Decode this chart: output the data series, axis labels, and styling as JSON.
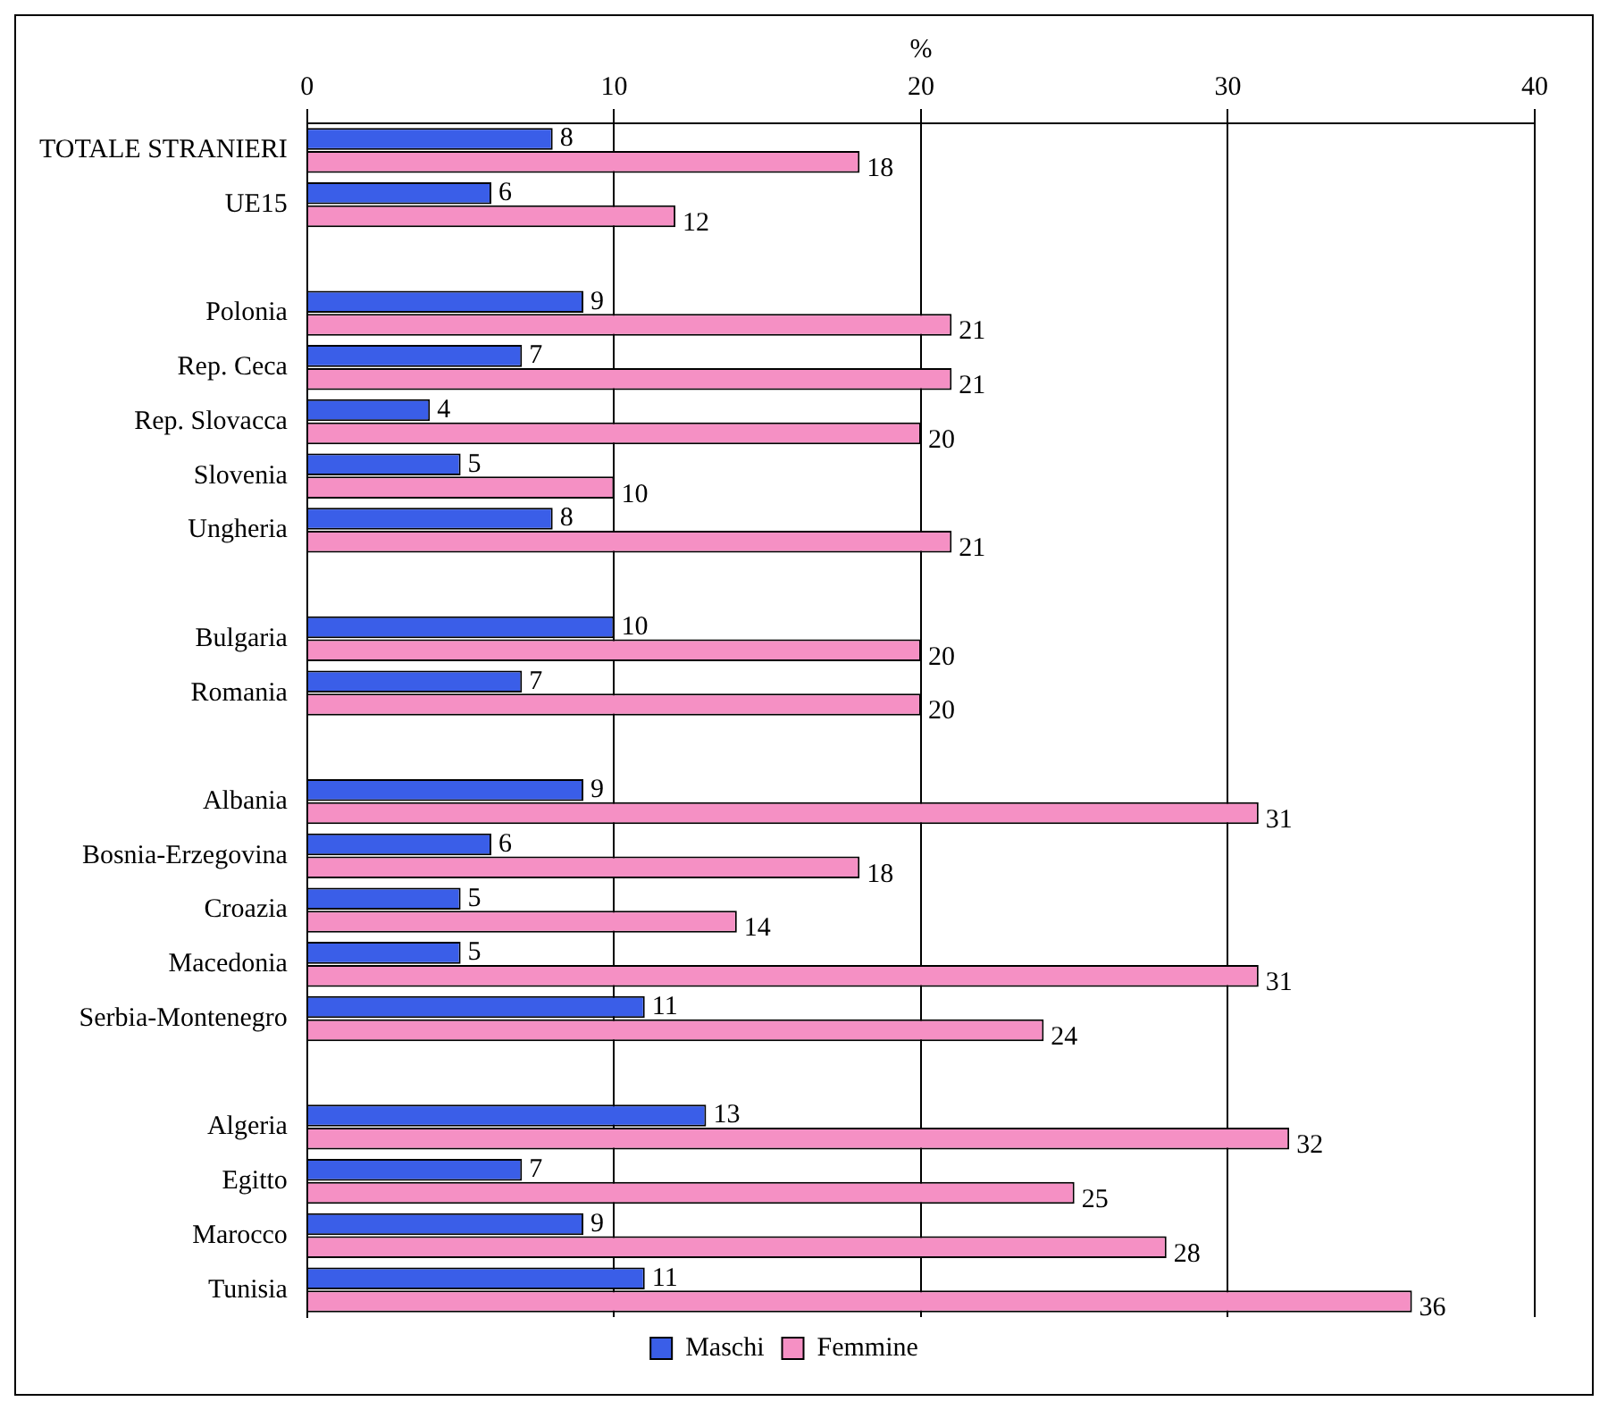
{
  "chart_data": {
    "type": "bar",
    "orientation": "horizontal",
    "xlabel": "%",
    "categories": [
      "TOTALE STRANIERI",
      "UE15",
      null,
      "Polonia",
      "Rep. Ceca",
      "Rep. Slovacca",
      "Slovenia",
      "Ungheria",
      null,
      "Bulgaria",
      "Romania",
      null,
      "Albania",
      "Bosnia-Erzegovina",
      "Croazia",
      "Macedonia",
      "Serbia-Montenegro",
      null,
      "Algeria",
      "Egitto",
      "Marocco",
      "Tunisia"
    ],
    "series": [
      {
        "name": "Maschi",
        "color": "#3a5ee8",
        "values": [
          8,
          6,
          null,
          9,
          7,
          4,
          5,
          8,
          null,
          10,
          7,
          null,
          9,
          6,
          5,
          5,
          11,
          null,
          13,
          7,
          9,
          11
        ]
      },
      {
        "name": "Femmine",
        "color": "#f590c4",
        "values": [
          18,
          12,
          null,
          21,
          21,
          20,
          10,
          21,
          null,
          20,
          20,
          null,
          31,
          18,
          14,
          31,
          24,
          null,
          32,
          25,
          28,
          36
        ]
      }
    ],
    "xlim": [
      0,
      40
    ],
    "xticks": [
      0,
      10,
      20,
      30,
      40
    ],
    "grid": "x",
    "legend": "bottom",
    "data_labels": true
  }
}
